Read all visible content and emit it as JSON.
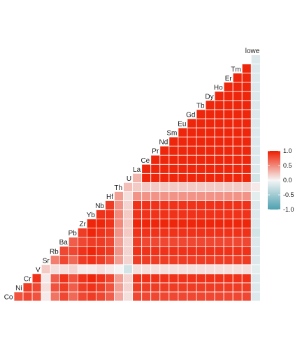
{
  "chart_data": {
    "type": "heatmap",
    "variables": [
      "Co",
      "Ni",
      "Cr",
      "V",
      "Sr",
      "Rb",
      "Ba",
      "Pb",
      "Zr",
      "Yb",
      "Nb",
      "Hf",
      "Th",
      "U",
      "La",
      "Ce",
      "Pr",
      "Nd",
      "Sm",
      "Eu",
      "Gd",
      "Tb",
      "Dy",
      "Ho",
      "Er",
      "Tm",
      "lowe"
    ],
    "rows": [
      {
        "label": "Co",
        "values": [
          0.75
        ]
      },
      {
        "label": "Ni",
        "values": [
          0.8,
          0.85
        ]
      },
      {
        "label": "Cr",
        "values": [
          0.75,
          0.8,
          0.9
        ]
      },
      {
        "label": "V",
        "values": [
          0.05,
          0.1,
          0.05,
          0.2
        ]
      },
      {
        "label": "Sr",
        "values": [
          0.6,
          0.75,
          0.7,
          0.1,
          0.55
        ]
      },
      {
        "label": "Rb",
        "values": [
          0.8,
          0.85,
          0.9,
          0.1,
          0.8,
          0.8
        ]
      },
      {
        "label": "Ba",
        "values": [
          0.65,
          0.7,
          0.75,
          0.15,
          0.65,
          0.8,
          0.7
        ]
      },
      {
        "label": "Pb",
        "values": [
          0.8,
          0.85,
          0.9,
          0.05,
          0.85,
          0.9,
          0.8,
          0.85
        ]
      },
      {
        "label": "Zr",
        "values": [
          0.85,
          0.9,
          0.95,
          0.05,
          0.9,
          0.95,
          0.85,
          0.95,
          0.95
        ]
      },
      {
        "label": "Yb",
        "values": [
          0.8,
          0.85,
          0.9,
          0.1,
          0.85,
          0.9,
          0.85,
          0.9,
          0.95,
          0.9
        ]
      },
      {
        "label": "Nb",
        "values": [
          0.7,
          0.75,
          0.8,
          0.05,
          0.75,
          0.85,
          0.8,
          0.85,
          0.9,
          0.9,
          0.85
        ]
      },
      {
        "label": "Hf",
        "values": [
          0.35,
          0.4,
          0.4,
          0.0,
          0.4,
          0.45,
          0.4,
          0.45,
          0.5,
          0.5,
          0.45,
          0.4
        ]
      },
      {
        "label": "Th",
        "values": [
          0.1,
          0.15,
          0.15,
          -0.2,
          0.15,
          0.15,
          0.15,
          0.2,
          0.2,
          0.2,
          0.15,
          0.1,
          0.25
        ]
      },
      {
        "label": "U",
        "values": [
          0.8,
          0.85,
          0.9,
          0.1,
          0.85,
          0.9,
          0.85,
          0.9,
          0.95,
          0.9,
          0.9,
          0.45,
          0.2,
          0.3
        ]
      },
      {
        "label": "La",
        "values": [
          0.8,
          0.85,
          0.9,
          0.1,
          0.85,
          0.9,
          0.8,
          0.9,
          0.95,
          0.9,
          0.9,
          0.45,
          0.2,
          0.95,
          0.95
        ]
      },
      {
        "label": "Ce",
        "values": [
          0.8,
          0.85,
          0.9,
          0.1,
          0.85,
          0.9,
          0.8,
          0.9,
          0.95,
          0.9,
          0.9,
          0.45,
          0.2,
          0.95,
          0.95,
          0.95
        ]
      },
      {
        "label": "Pr",
        "values": [
          0.8,
          0.85,
          0.9,
          0.1,
          0.85,
          0.9,
          0.8,
          0.9,
          0.95,
          0.9,
          0.9,
          0.45,
          0.2,
          0.95,
          0.95,
          0.95,
          0.95
        ]
      },
      {
        "label": "Nd",
        "values": [
          0.8,
          0.85,
          0.9,
          0.1,
          0.85,
          0.9,
          0.8,
          0.9,
          0.95,
          0.9,
          0.9,
          0.45,
          0.2,
          0.95,
          0.95,
          0.95,
          0.95,
          0.95
        ]
      },
      {
        "label": "Sm",
        "values": [
          0.8,
          0.85,
          0.9,
          0.1,
          0.85,
          0.9,
          0.8,
          0.9,
          0.95,
          0.9,
          0.9,
          0.45,
          0.2,
          0.95,
          0.95,
          0.95,
          0.95,
          0.95,
          0.95
        ]
      },
      {
        "label": "Eu",
        "values": [
          0.8,
          0.85,
          0.9,
          0.1,
          0.85,
          0.9,
          0.8,
          0.9,
          0.95,
          0.9,
          0.9,
          0.45,
          0.2,
          0.95,
          0.95,
          0.95,
          0.95,
          0.95,
          0.95,
          0.95
        ]
      },
      {
        "label": "Gd",
        "values": [
          0.8,
          0.85,
          0.9,
          0.1,
          0.85,
          0.9,
          0.8,
          0.9,
          0.95,
          0.9,
          0.9,
          0.45,
          0.2,
          0.95,
          0.95,
          0.95,
          0.95,
          0.95,
          0.95,
          0.95,
          0.95
        ]
      },
      {
        "label": "Tb",
        "values": [
          0.8,
          0.85,
          0.9,
          0.1,
          0.85,
          0.9,
          0.8,
          0.9,
          0.95,
          0.9,
          0.9,
          0.45,
          0.2,
          0.95,
          0.95,
          0.95,
          0.95,
          0.95,
          0.95,
          0.95,
          0.95,
          0.95
        ]
      },
      {
        "label": "Dy",
        "values": [
          0.8,
          0.85,
          0.9,
          0.1,
          0.85,
          0.9,
          0.8,
          0.9,
          0.95,
          0.9,
          0.9,
          0.45,
          0.2,
          0.95,
          0.95,
          0.95,
          0.95,
          0.95,
          0.95,
          0.95,
          0.95,
          0.95,
          0.95
        ]
      },
      {
        "label": "Ho",
        "values": [
          0.8,
          0.85,
          0.9,
          0.1,
          0.85,
          0.9,
          0.8,
          0.9,
          0.95,
          0.9,
          0.9,
          0.45,
          0.2,
          0.95,
          0.95,
          0.95,
          0.95,
          0.95,
          0.95,
          0.95,
          0.95,
          0.95,
          0.95,
          0.95
        ]
      },
      {
        "label": "Er",
        "values": [
          0.8,
          0.85,
          0.9,
          0.1,
          0.85,
          0.9,
          0.8,
          0.9,
          0.95,
          0.9,
          0.9,
          0.45,
          0.2,
          0.95,
          0.95,
          0.95,
          0.95,
          0.95,
          0.95,
          0.95,
          0.95,
          0.95,
          0.95,
          0.95,
          0.95
        ]
      },
      {
        "label": "Tm",
        "values": [
          0.8,
          0.85,
          0.9,
          0.1,
          0.85,
          0.9,
          0.8,
          0.9,
          0.95,
          0.9,
          0.9,
          0.45,
          0.2,
          0.95,
          0.95,
          0.95,
          0.95,
          0.95,
          0.95,
          0.95,
          0.95,
          0.95,
          0.95,
          0.95,
          0.95,
          0.95
        ]
      },
      {
        "label": "lowe",
        "values": [
          -0.15,
          -0.15,
          -0.15,
          -0.1,
          -0.15,
          -0.15,
          -0.15,
          -0.2,
          -0.15,
          -0.15,
          -0.15,
          -0.1,
          0.05,
          -0.2,
          -0.15,
          -0.15,
          -0.15,
          -0.15,
          -0.15,
          -0.15,
          -0.15,
          -0.15,
          -0.15,
          -0.15,
          -0.15,
          -0.15,
          -0.15
        ]
      }
    ],
    "color_scale": {
      "low": "#4da0b0",
      "mid": "#f5f5f5",
      "high": "#ee1c00",
      "range": [
        -1,
        1
      ],
      "ticks": [
        1.0,
        0.5,
        0.0,
        -0.5,
        -1.0
      ],
      "tick_labels": [
        "1.0",
        "0.5",
        "0.0",
        "-0.5",
        "-1.0"
      ]
    },
    "grid": false,
    "legend_position": "right"
  }
}
